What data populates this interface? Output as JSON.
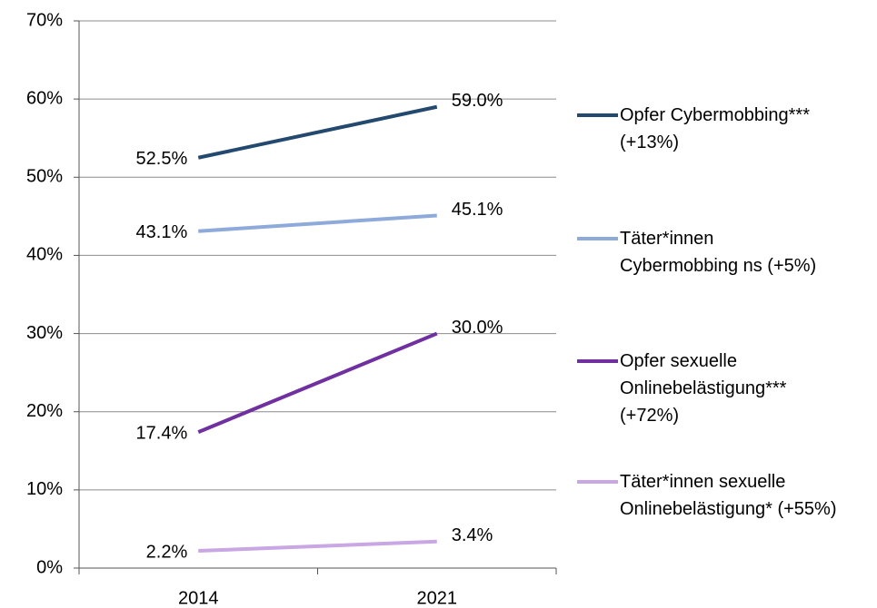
{
  "chart_data": {
    "type": "line",
    "categories": [
      "2014",
      "2021"
    ],
    "series": [
      {
        "name": "Opfer Cybermobbing***\n(+13%)",
        "color": "#24496f",
        "values": [
          52.5,
          59.0
        ],
        "value_labels": [
          "52.5%",
          "59.0%"
        ]
      },
      {
        "name": "Täter*innen\nCybermobbing ns (+5%)",
        "color": "#8eaadb",
        "values": [
          43.1,
          45.1
        ],
        "value_labels": [
          "43.1%",
          "45.1%"
        ]
      },
      {
        "name": "Opfer sexuelle\nOnlinebelästigung***\n(+72%)",
        "color": "#7030a0",
        "values": [
          17.4,
          30.0
        ],
        "value_labels": [
          "17.4%",
          "30.0%"
        ]
      },
      {
        "name": "Täter*innen sexuelle\nOnlinebelästigung* (+55%)",
        "color": "#c9a6e4",
        "values": [
          2.2,
          3.4
        ],
        "value_labels": [
          "2.2%",
          "3.4%"
        ]
      }
    ],
    "ylim": [
      0,
      70
    ],
    "yticks": [
      {
        "value": 0,
        "label": "0%"
      },
      {
        "value": 10,
        "label": "10%"
      },
      {
        "value": 20,
        "label": "20%"
      },
      {
        "value": 30,
        "label": "30%"
      },
      {
        "value": 40,
        "label": "40%"
      },
      {
        "value": 50,
        "label": "50%"
      },
      {
        "value": 60,
        "label": "60%"
      },
      {
        "value": 70,
        "label": "70%"
      }
    ],
    "grid": true,
    "legend": "right"
  }
}
